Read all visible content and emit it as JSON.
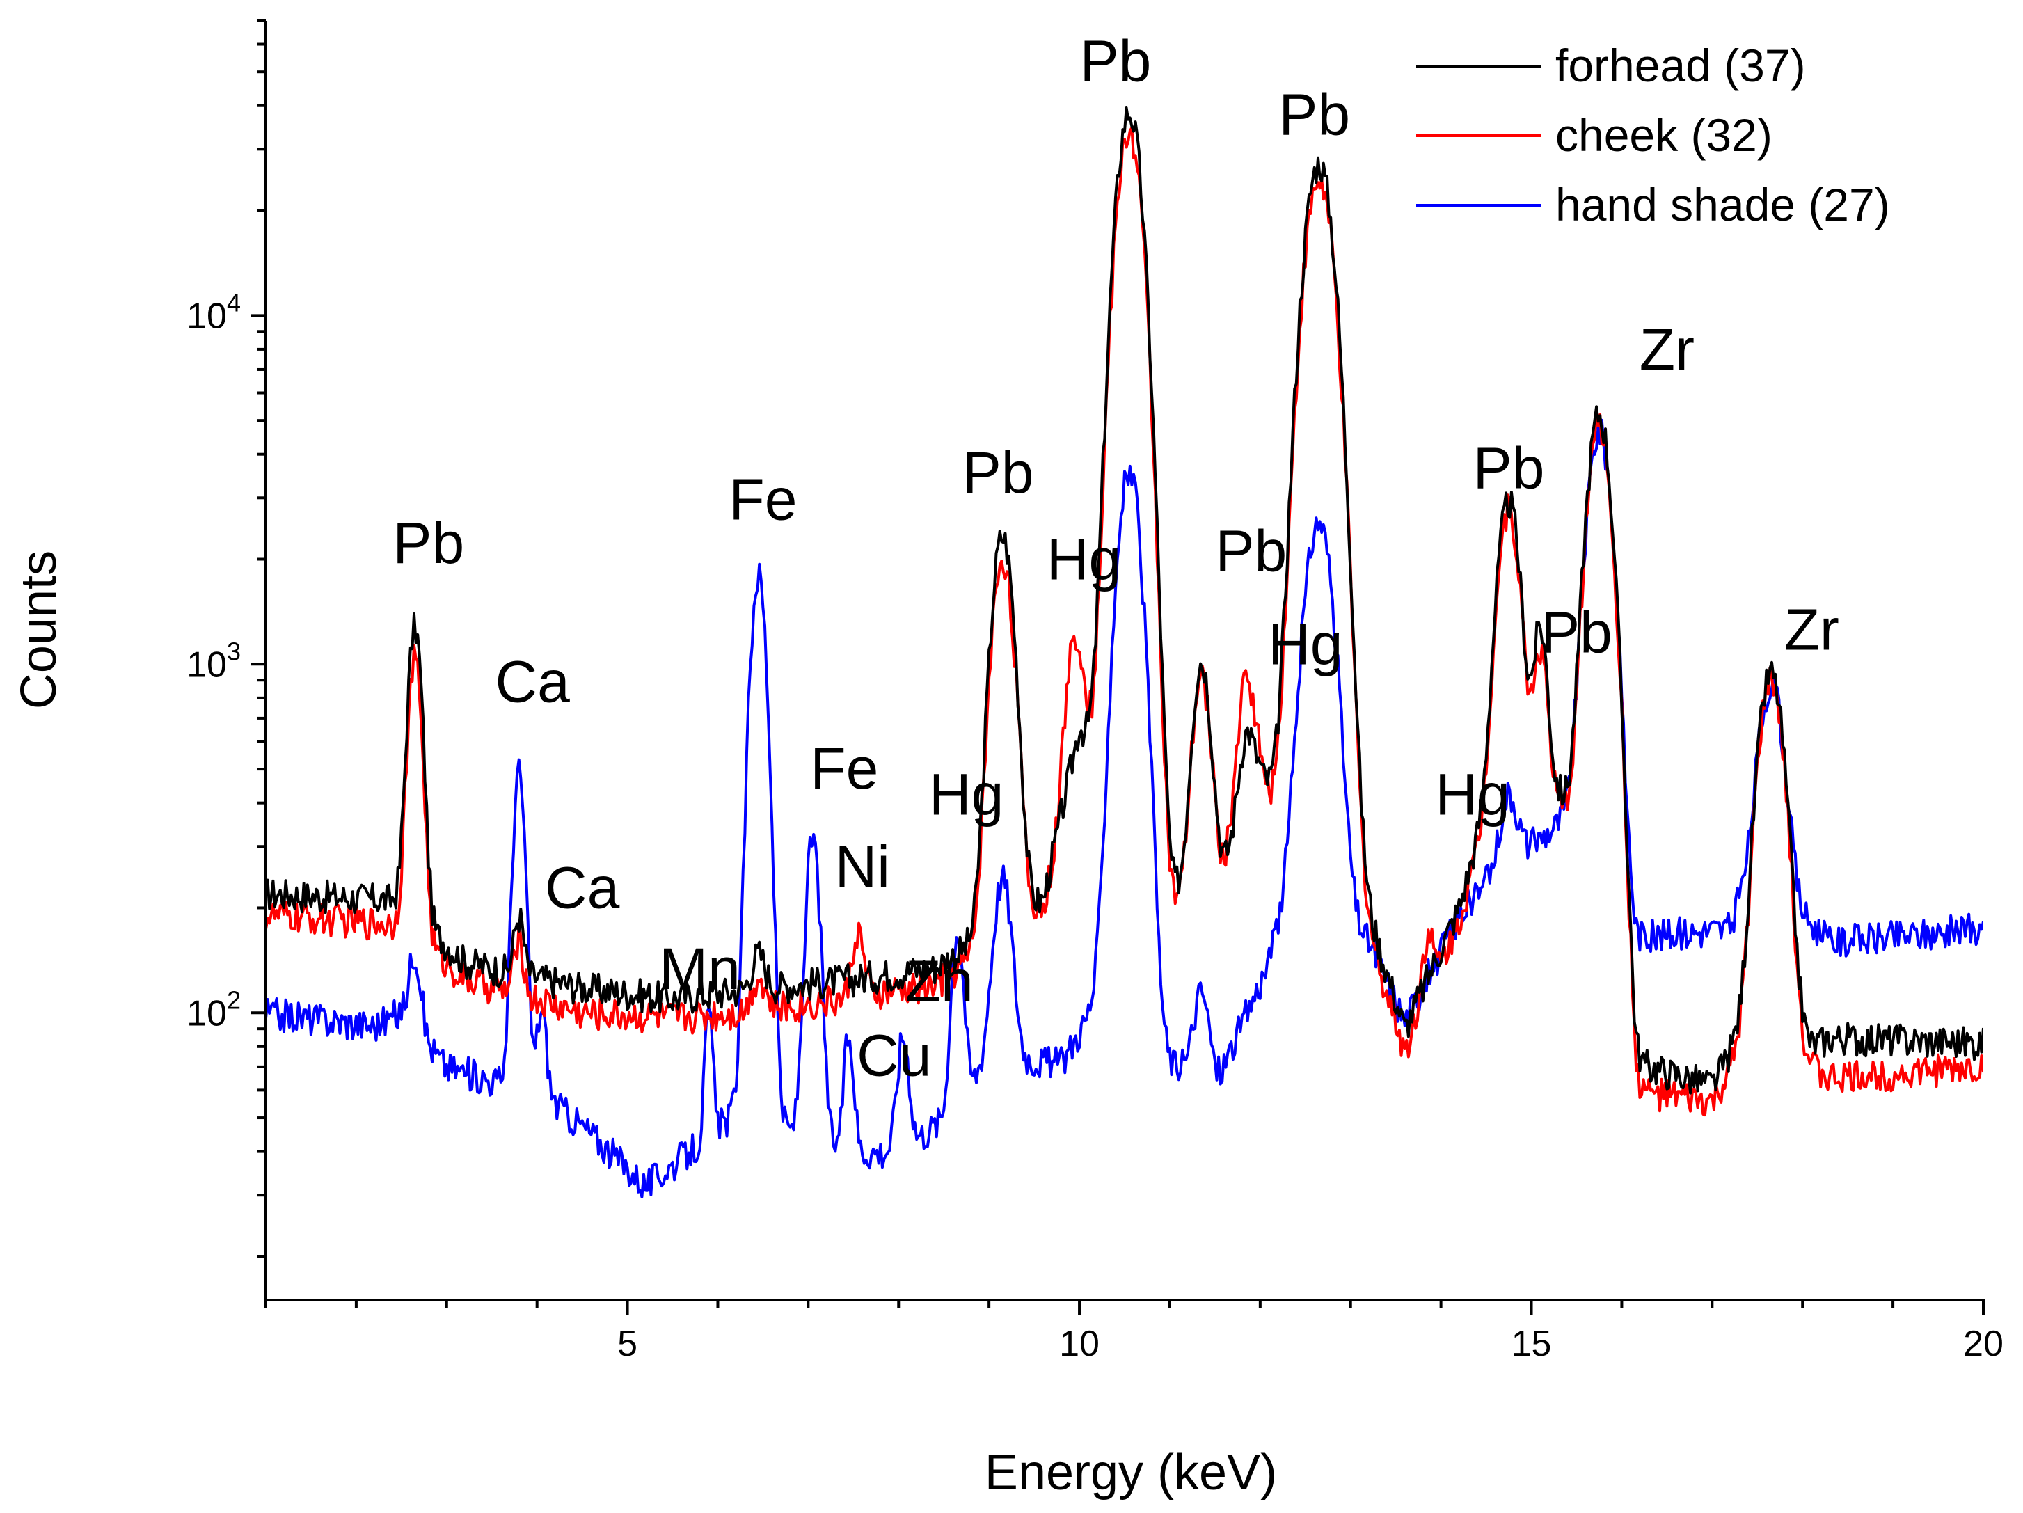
{
  "chart_data": {
    "type": "line",
    "xlabel": "Energy (keV)",
    "ylabel": "Counts",
    "xlim": [
      1,
      20
    ],
    "ylim": [
      15,
      70000
    ],
    "yscale": "log",
    "x_ticks": [
      5,
      10,
      15,
      20
    ],
    "y_ticks": [
      {
        "value": 100,
        "base": "10",
        "exp": "2"
      },
      {
        "value": 1000,
        "base": "10",
        "exp": "3"
      },
      {
        "value": 10000,
        "base": "10",
        "exp": "4"
      }
    ],
    "legend_position": "top-right",
    "series": [
      {
        "name": "forhead (37)",
        "color": "#000000",
        "baseline": [
          [
            1.0,
            220
          ],
          [
            2.5,
            210
          ],
          [
            3.2,
            140
          ],
          [
            4.5,
            118
          ],
          [
            5.5,
            110
          ],
          [
            6.5,
            118
          ],
          [
            7.5,
            125
          ],
          [
            8.4,
            135
          ],
          [
            9.6,
            210
          ],
          [
            10.0,
            660
          ],
          [
            11.0,
            215
          ],
          [
            11.6,
            265
          ],
          [
            12.0,
            470
          ],
          [
            13.2,
            190
          ],
          [
            13.6,
            90
          ],
          [
            14.2,
            200
          ],
          [
            14.6,
            480
          ],
          [
            15.3,
            430
          ],
          [
            16.0,
            200
          ],
          [
            16.15,
            72
          ],
          [
            17.0,
            62
          ],
          [
            17.25,
            80
          ],
          [
            18.1,
            80
          ],
          [
            18.3,
            85
          ],
          [
            20.0,
            82
          ]
        ],
        "peaks": [
          [
            2.65,
            1080,
            0.07
          ],
          [
            3.8,
            60,
            0.05
          ],
          [
            6.45,
            30,
            0.07
          ],
          [
            9.15,
            2150,
            0.11
          ],
          [
            10.55,
            38000,
            0.13
          ],
          [
            11.35,
            780,
            0.09
          ],
          [
            11.85,
            260,
            0.08
          ],
          [
            12.65,
            27000,
            0.15
          ],
          [
            14.75,
            2450,
            0.11
          ],
          [
            15.1,
            820,
            0.07
          ],
          [
            15.75,
            4950,
            0.12
          ],
          [
            17.65,
            860,
            0.13
          ]
        ]
      },
      {
        "name": "cheek (32)",
        "color": "#ff0000",
        "baseline": [
          [
            1.0,
            190
          ],
          [
            2.5,
            180
          ],
          [
            3.2,
            125
          ],
          [
            4.5,
            100
          ],
          [
            5.5,
            97
          ],
          [
            6.5,
            102
          ],
          [
            7.5,
            110
          ],
          [
            8.4,
            120
          ],
          [
            9.6,
            200
          ],
          [
            10.0,
            560
          ],
          [
            11.0,
            190
          ],
          [
            11.6,
            255
          ],
          [
            12.0,
            430
          ],
          [
            13.2,
            170
          ],
          [
            13.6,
            78
          ],
          [
            14.2,
            185
          ],
          [
            14.6,
            440
          ],
          [
            15.3,
            390
          ],
          [
            16.0,
            180
          ],
          [
            16.15,
            60
          ],
          [
            17.0,
            55
          ],
          [
            17.25,
            70
          ],
          [
            18.1,
            70
          ],
          [
            18.3,
            65
          ],
          [
            20.0,
            70
          ]
        ],
        "peaks": [
          [
            2.65,
            860,
            0.07
          ],
          [
            3.8,
            50,
            0.05
          ],
          [
            6.45,
            25,
            0.07
          ],
          [
            7.55,
            60,
            0.06
          ],
          [
            9.15,
            1850,
            0.11
          ],
          [
            9.95,
            720,
            0.09
          ],
          [
            10.55,
            33500,
            0.13
          ],
          [
            11.35,
            690,
            0.09
          ],
          [
            11.85,
            560,
            0.09
          ],
          [
            12.65,
            24000,
            0.15
          ],
          [
            13.85,
            55,
            0.06
          ],
          [
            14.75,
            2350,
            0.11
          ],
          [
            15.1,
            700,
            0.07
          ],
          [
            15.75,
            4650,
            0.12
          ],
          [
            17.65,
            830,
            0.13
          ]
        ]
      },
      {
        "name": "hand shade (27)",
        "color": "#0000ff",
        "baseline": [
          [
            1.0,
            100
          ],
          [
            2.2,
            92
          ],
          [
            2.5,
            100
          ],
          [
            3.0,
            70
          ],
          [
            3.7,
            62
          ],
          [
            4.2,
            55
          ],
          [
            4.6,
            45
          ],
          [
            5.2,
            32
          ],
          [
            5.8,
            42
          ],
          [
            6.2,
            52
          ],
          [
            6.9,
            45
          ],
          [
            7.5,
            40
          ],
          [
            8.0,
            40
          ],
          [
            8.6,
            52
          ],
          [
            9.0,
            75
          ],
          [
            9.8,
            72
          ],
          [
            10.3,
            120
          ],
          [
            11.0,
            72
          ],
          [
            11.5,
            62
          ],
          [
            12.1,
            140
          ],
          [
            12.4,
            250
          ],
          [
            13.2,
            160
          ],
          [
            13.6,
            95
          ],
          [
            14.2,
            190
          ],
          [
            14.6,
            250
          ],
          [
            15.3,
            350
          ],
          [
            15.9,
            460
          ],
          [
            16.15,
            165
          ],
          [
            17.2,
            175
          ],
          [
            17.3,
            200
          ],
          [
            18.1,
            180
          ],
          [
            18.3,
            160
          ],
          [
            20.0,
            175
          ]
        ],
        "peaks": [
          [
            2.65,
            60,
            0.06
          ],
          [
            3.8,
            430,
            0.06
          ],
          [
            4.05,
            45,
            0.05
          ],
          [
            5.9,
            55,
            0.04
          ],
          [
            6.45,
            1760,
            0.08
          ],
          [
            7.05,
            270,
            0.07
          ],
          [
            7.45,
            45,
            0.05
          ],
          [
            8.05,
            45,
            0.06
          ],
          [
            8.65,
            120,
            0.06
          ],
          [
            9.15,
            170,
            0.09
          ],
          [
            10.55,
            3450,
            0.12
          ],
          [
            11.35,
            50,
            0.08
          ],
          [
            12.65,
            2350,
            0.14
          ],
          [
            14.75,
            160,
            0.09
          ],
          [
            15.75,
            4250,
            0.12
          ],
          [
            17.65,
            680,
            0.13
          ]
        ]
      }
    ],
    "annotations": [
      {
        "text": "Pb",
        "x": 2.8,
        "y": 1950
      },
      {
        "text": "Ca",
        "x": 3.95,
        "y": 780
      },
      {
        "text": "Ca",
        "x": 4.5,
        "y": 200
      },
      {
        "text": "Fe",
        "x": 6.5,
        "y": 2600
      },
      {
        "text": "Fe",
        "x": 7.4,
        "y": 440
      },
      {
        "text": "Ni",
        "x": 7.6,
        "y": 230
      },
      {
        "text": "Mn",
        "x": 5.8,
        "y": 117
      },
      {
        "text": "Zn",
        "x": 8.45,
        "y": 108
      },
      {
        "text": "Cu",
        "x": 7.95,
        "y": 66
      },
      {
        "text": "Hg",
        "x": 8.75,
        "y": 370
      },
      {
        "text": "Pb",
        "x": 9.1,
        "y": 3100
      },
      {
        "text": "Hg",
        "x": 10.05,
        "y": 1750
      },
      {
        "text": "Pb",
        "x": 10.4,
        "y": 47000
      },
      {
        "text": "Pb",
        "x": 11.9,
        "y": 1850
      },
      {
        "text": "Hg",
        "x": 12.5,
        "y": 1000
      },
      {
        "text": "Pb",
        "x": 12.6,
        "y": 33000
      },
      {
        "text": "Hg",
        "x": 14.35,
        "y": 370
      },
      {
        "text": "Pb",
        "x": 14.75,
        "y": 3200
      },
      {
        "text": "Pb",
        "x": 15.5,
        "y": 1080
      },
      {
        "text": "Zr",
        "x": 16.5,
        "y": 7000
      },
      {
        "text": "Zr",
        "x": 18.1,
        "y": 1100
      }
    ]
  }
}
